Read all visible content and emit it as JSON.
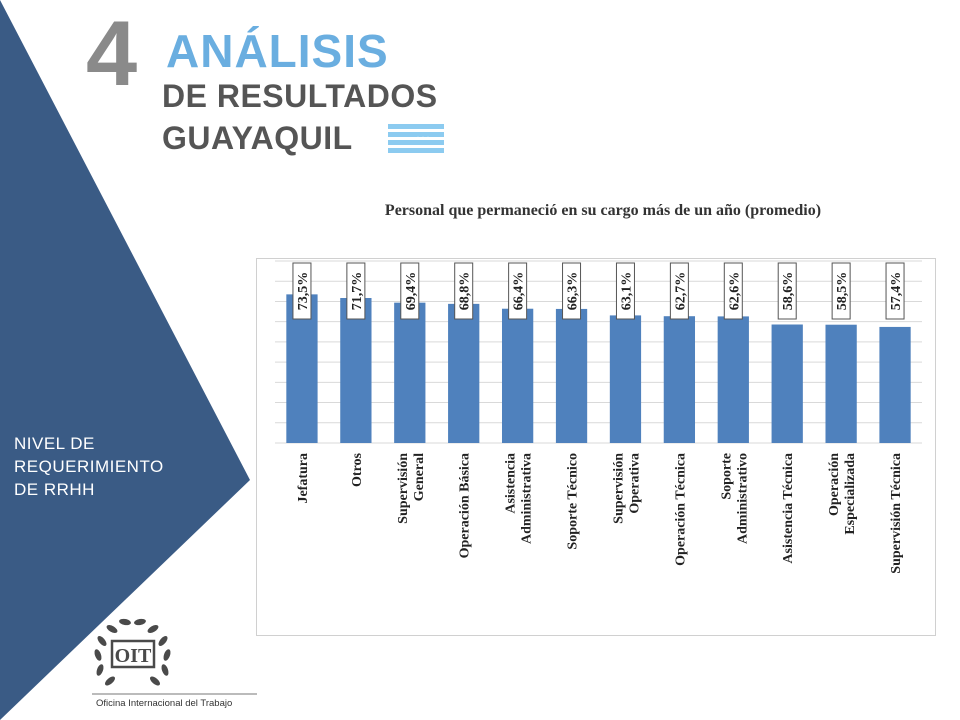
{
  "header": {
    "section_number": "4",
    "title_line1": "ANÁLISIS",
    "title_line2": "DE RESULTADOS",
    "title_line3": "GUAYAQUIL"
  },
  "sidebar": {
    "label": "NIVEL DE\nREQUERIMIENTO\nDE RRHH"
  },
  "logo": {
    "mark_text": "OIT",
    "caption": "Oficina Internacional del Trabajo"
  },
  "colors": {
    "sidebar": "#3a5b85",
    "bar": "#4f81bd",
    "title_accent": "#6aaee0",
    "title_gray": "#555555",
    "number_gray": "#8a8a8a"
  },
  "chart_data": {
    "type": "bar",
    "title": "Personal que permaneció en su cargo más de un año (promedio)",
    "categories": [
      [
        "Jefatura"
      ],
      [
        "Otros"
      ],
      [
        "Supervisión",
        "General"
      ],
      [
        "Operación Básica"
      ],
      [
        "Asistencia",
        "Administrativa"
      ],
      [
        "Soporte Técnico"
      ],
      [
        "Supervisión",
        "Operativa"
      ],
      [
        "Operación Técnica"
      ],
      [
        "Soporte",
        "Administrativo"
      ],
      [
        "Asistencia Técnica"
      ],
      [
        "Operación",
        "Especializada"
      ],
      [
        "Supervisión Técnica"
      ]
    ],
    "values": [
      73.5,
      71.7,
      69.4,
      68.8,
      66.4,
      66.3,
      63.1,
      62.7,
      62.6,
      58.6,
      58.5,
      57.4
    ],
    "data_labels": [
      "73,5%",
      "71,7%",
      "69,4%",
      "68,8%",
      "66,4%",
      "66,3%",
      "63,1%",
      "62,7%",
      "62,6%",
      "58,6%",
      "58,5%",
      "57,4%"
    ],
    "ylim": [
      0,
      90
    ],
    "grid": true,
    "legend": "none"
  }
}
